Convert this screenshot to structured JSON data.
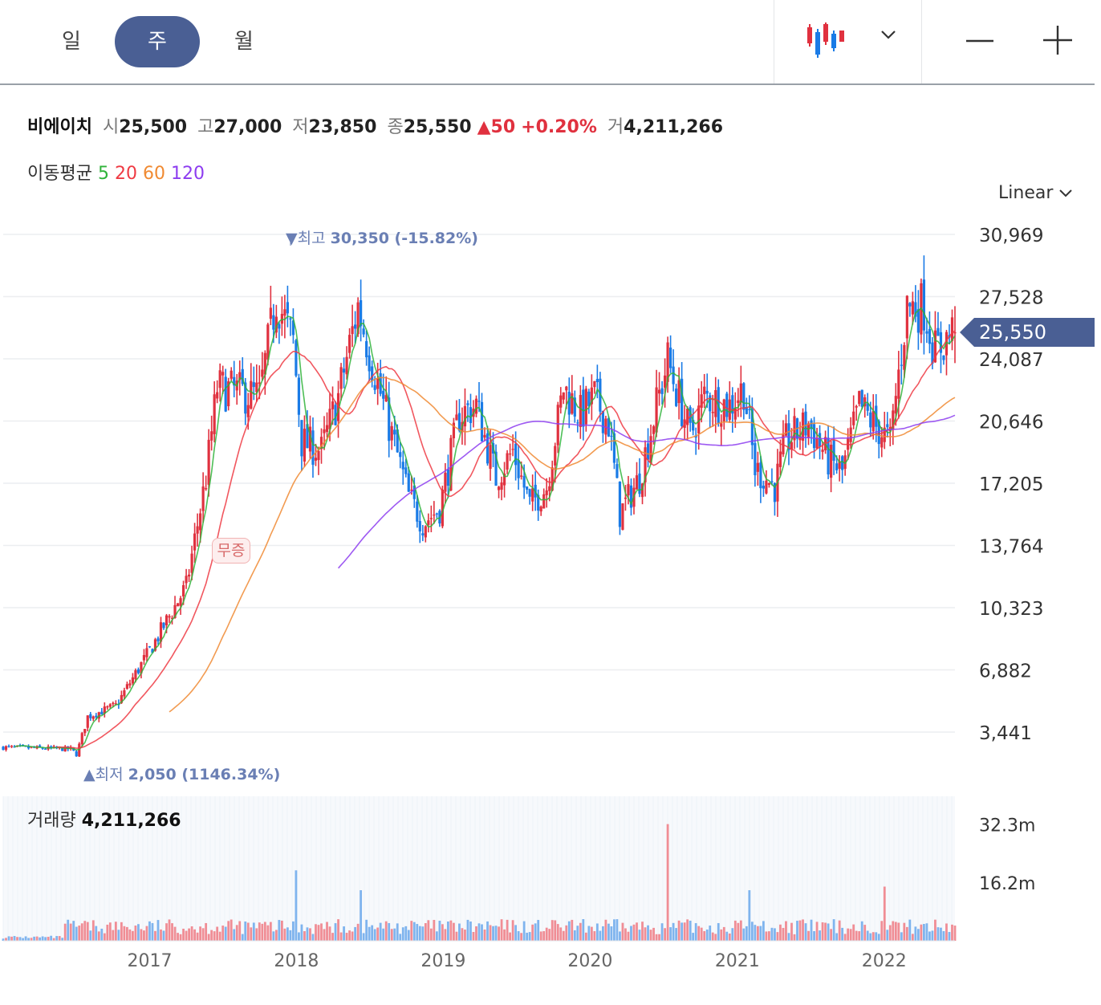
{
  "periods": [
    {
      "label": "일",
      "active": false
    },
    {
      "label": "주",
      "active": true
    },
    {
      "label": "월",
      "active": false
    }
  ],
  "stock": {
    "name": "비에이치",
    "open_label": "시",
    "open": "25,500",
    "high_label": "고",
    "high": "27,000",
    "low_label": "저",
    "low": "23,850",
    "close_label": "종",
    "close": "25,550",
    "change": "50",
    "change_pct": "+0.20%",
    "volume_label": "거",
    "volume": "4,211,266"
  },
  "ma": {
    "label": "이동평균",
    "items": [
      {
        "period": "5",
        "color": "#2fb33a"
      },
      {
        "period": "20",
        "color": "#ef3a43"
      },
      {
        "period": "60",
        "color": "#f08a32"
      },
      {
        "period": "120",
        "color": "#8d3df0"
      }
    ]
  },
  "scale_label": "Linear",
  "colors": {
    "up": "#e0313f",
    "down": "#1a7be6",
    "accent": "#4a5f94",
    "marker": "#6a7fb4"
  },
  "chart_data": {
    "type": "candlestick",
    "x_ticks": [
      "2017",
      "2018",
      "2019",
      "2020",
      "2021",
      "2022"
    ],
    "y_ticks": [
      "30,969",
      "27,528",
      "24,087",
      "20,646",
      "17,205",
      "13,764",
      "10,323",
      "6,882",
      "3,441"
    ],
    "ylim": [
      0,
      31000
    ],
    "current_price": {
      "label": "25,550",
      "value": 25550
    },
    "high_marker": {
      "prefix": "▼최고",
      "value": 30350,
      "text": "30,350 (-15.82%)"
    },
    "low_marker": {
      "prefix": "▲최저",
      "value": 2050,
      "text": "2,050 (1146.34%)"
    },
    "event_badge": "무증",
    "price_anchors": [
      [
        "2016-01-04",
        2600
      ],
      [
        "2016-06-20",
        2500
      ],
      [
        "2016-07-04",
        2200
      ],
      [
        "2016-08-01",
        4300
      ],
      [
        "2016-10-10",
        4900
      ],
      [
        "2017-01-09",
        8200
      ],
      [
        "2017-04-03",
        11500
      ],
      [
        "2017-05-22",
        17500
      ],
      [
        "2017-06-19",
        22500
      ],
      [
        "2017-10-02",
        22000
      ],
      [
        "2017-11-13",
        27500
      ],
      [
        "2017-12-25",
        25000
      ],
      [
        "2018-01-15",
        19500
      ],
      [
        "2018-03-05",
        19000
      ],
      [
        "2018-04-16",
        22000
      ],
      [
        "2018-06-04",
        27000
      ],
      [
        "2018-07-02",
        24500
      ],
      [
        "2018-08-13",
        21000
      ],
      [
        "2018-10-08",
        16500
      ],
      [
        "2018-11-12",
        15000
      ],
      [
        "2018-12-24",
        15800
      ],
      [
        "2019-02-11",
        21000
      ],
      [
        "2019-03-25",
        21500
      ],
      [
        "2019-05-13",
        17500
      ],
      [
        "2019-06-24",
        19000
      ],
      [
        "2019-08-05",
        16000
      ],
      [
        "2019-09-16",
        17000
      ],
      [
        "2019-10-28",
        22500
      ],
      [
        "2019-12-09",
        21000
      ],
      [
        "2020-01-13",
        22000
      ],
      [
        "2020-02-17",
        20500
      ],
      [
        "2020-03-16",
        15500
      ],
      [
        "2020-05-04",
        17500
      ],
      [
        "2020-06-15",
        21500
      ],
      [
        "2020-07-13",
        24000
      ],
      [
        "2020-09-07",
        19800
      ],
      [
        "2020-10-12",
        22000
      ],
      [
        "2020-12-14",
        21500
      ],
      [
        "2021-01-18",
        22500
      ],
      [
        "2021-02-15",
        18000
      ],
      [
        "2021-04-05",
        17000
      ],
      [
        "2021-05-03",
        19500
      ],
      [
        "2021-06-28",
        20500
      ],
      [
        "2021-08-16",
        18500
      ],
      [
        "2021-09-20",
        17800
      ],
      [
        "2021-11-01",
        21500
      ],
      [
        "2021-12-06",
        20500
      ],
      [
        "2022-01-17",
        19500
      ],
      [
        "2022-02-28",
        27000
      ],
      [
        "2022-04-11",
        27000
      ],
      [
        "2022-05-09",
        24500
      ],
      [
        "2022-06-20",
        25550
      ]
    ],
    "last_candle": {
      "open": 25500,
      "high": 27000,
      "low": 23850,
      "close": 25550
    },
    "volume": {
      "label": "거래량",
      "value": "4,211,266",
      "y_ticks": [
        "32.3m",
        "16.2m"
      ],
      "ylim": [
        0,
        40000000
      ],
      "peak": {
        "date": "2020-07-13",
        "value": 32300000
      },
      "spikes": [
        [
          "2018-01-01",
          19500000
        ],
        [
          "2022-01-03",
          15000000
        ],
        [
          "2021-02-01",
          14000000
        ],
        [
          "2018-06-11",
          14000000
        ]
      ]
    }
  }
}
